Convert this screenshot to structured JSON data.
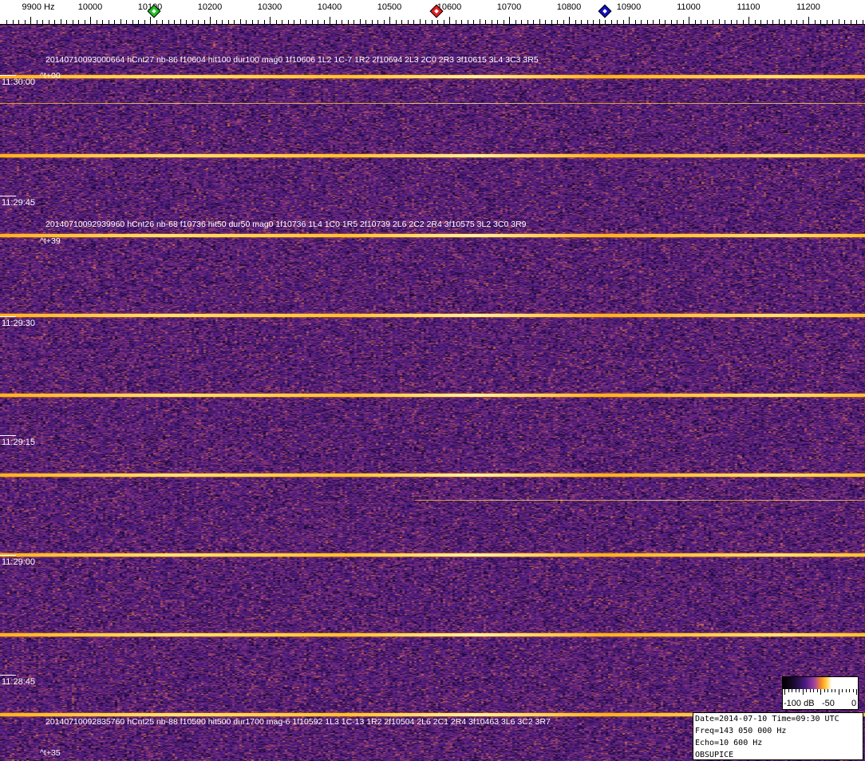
{
  "axis": {
    "unit_label": "9900 Hz",
    "tick_labels": [
      "10000",
      "10100",
      "10200",
      "10300",
      "10400",
      "10500",
      "10600",
      "10700",
      "10800",
      "10900",
      "11000",
      "11100",
      "11200"
    ],
    "markers": [
      {
        "name": "green",
        "color": "#20c020"
      },
      {
        "name": "red",
        "color": "#e02020"
      },
      {
        "name": "blue",
        "color": "#1010c0"
      }
    ]
  },
  "time_labels": [
    "11:30:00",
    "11:29:45",
    "11:29:30",
    "11:29:15",
    "11:29:00",
    "11:28:45"
  ],
  "annotations": [
    {
      "text": "20140710093000664 hCnt27 nb-86 f10604 hit100 dur100 mag0 1f10606 1L2 1C-7 1R2 2f10694 2L3 2C0 2R3 3f10615 3L4 3C3 3R5",
      "offset": "^t+00"
    },
    {
      "text": "20140710092939960 hCnt26 nb-68 f10736 hit50 dur50 mag0 1f10736 1L4 1C0 1R5 2f10739 2L6 2C2 2R4 3f10575 3L2 3C0 3R9",
      "offset": "^t+39"
    },
    {
      "text": "20140710092835760 hCnt25 nb-88 f10590 hit500 dur1700 mag-6 1f10592 1L3 1C-13 1R2 2f10504 2L6 2C1 2R4 3f10463 3L6 3C2 3R7",
      "offset": "^t+35"
    }
  ],
  "colorbar": {
    "labels": [
      "-100 dB",
      "-50",
      "0"
    ]
  },
  "info": {
    "line1": "Date=2014-07-10 Time=09:30 UTC",
    "line2": "Freq=143 050 000 Hz",
    "line3": "Echo=10 600 Hz",
    "line4": "OBSUPICE"
  }
}
